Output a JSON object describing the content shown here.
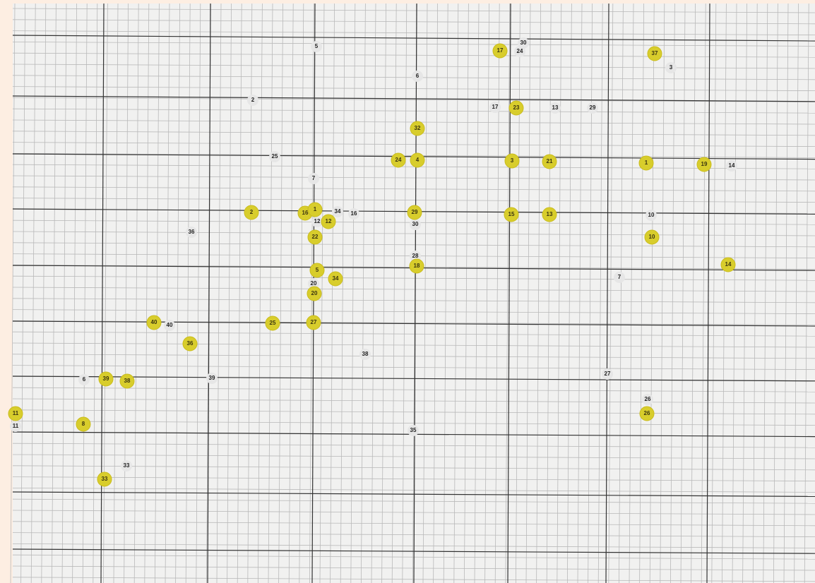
{
  "yellow_stickers": [
    "17",
    "37",
    "23",
    "32",
    "24",
    "4",
    "3",
    "21",
    "1",
    "19",
    "2",
    "16",
    "1",
    "12",
    "29",
    "15",
    "13",
    "10",
    "22",
    "14",
    "18",
    "5",
    "34",
    "20",
    "40",
    "25",
    "27",
    "36",
    "39",
    "38",
    "26",
    "11",
    "8",
    "33"
  ],
  "white_labels": [
    "5",
    "30",
    "24",
    "3",
    "6",
    "2",
    "17",
    "13",
    "29",
    "25",
    "7",
    "14",
    "34",
    "16",
    "12",
    "30",
    "10",
    "36",
    "28",
    "7",
    "20",
    "40",
    "38",
    "27",
    "6",
    "39",
    "26",
    "35",
    "33",
    "11"
  ]
}
